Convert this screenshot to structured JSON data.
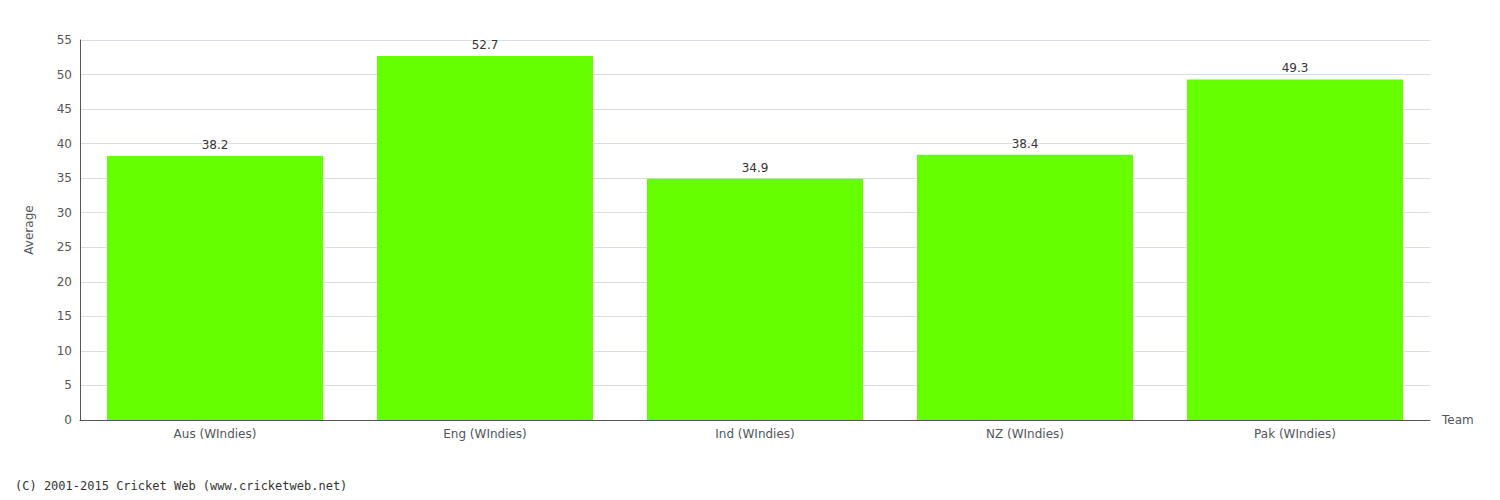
{
  "chart_data": {
    "type": "bar",
    "categories": [
      "Aus (WIndies)",
      "Eng (WIndies)",
      "Ind (WIndies)",
      "NZ (WIndies)",
      "Pak (WIndies)"
    ],
    "values": [
      38.2,
      52.7,
      34.9,
      38.4,
      49.3
    ],
    "color": "#66ff00",
    "xlabel": "Team",
    "ylabel": "Average",
    "ylim": [
      0,
      55
    ],
    "yticks": [
      0,
      5,
      10,
      15,
      20,
      25,
      30,
      35,
      40,
      45,
      50,
      55
    ],
    "grid": true,
    "data_labels": true,
    "footnote": "(C) 2001-2015 Cricket Web (www.cricketweb.net)"
  }
}
